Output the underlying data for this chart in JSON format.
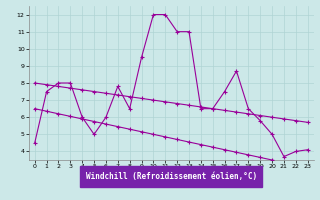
{
  "xlabel": "Windchill (Refroidissement éolien,°C)",
  "xlim": [
    -0.5,
    23.5
  ],
  "ylim": [
    3.5,
    12.5
  ],
  "yticks": [
    4,
    5,
    6,
    7,
    8,
    9,
    10,
    11,
    12
  ],
  "xticks": [
    0,
    1,
    2,
    3,
    4,
    5,
    6,
    7,
    8,
    9,
    10,
    11,
    12,
    13,
    14,
    15,
    16,
    17,
    18,
    19,
    20,
    21,
    22,
    23
  ],
  "bg_color": "#cce8e8",
  "grid_color": "#b0d4d4",
  "line_color": "#990099",
  "label_bg": "#7722aa",
  "line1_y": [
    4.5,
    7.5,
    8.0,
    8.0,
    6.0,
    5.0,
    6.0,
    7.8,
    6.5,
    9.5,
    12.0,
    12.0,
    11.0,
    11.0,
    6.5,
    6.5,
    7.5,
    8.7,
    6.5,
    5.8,
    5.0,
    3.7,
    4.0,
    4.1
  ],
  "line2_y": [
    8.0,
    7.9,
    7.8,
    7.7,
    7.6,
    7.5,
    7.4,
    7.3,
    7.2,
    7.1,
    7.0,
    6.9,
    6.8,
    6.7,
    6.6,
    6.5,
    6.4,
    6.3,
    6.2,
    6.1,
    6.0,
    5.9,
    5.8,
    5.7
  ],
  "line3_y": [
    6.5,
    6.35,
    6.2,
    6.05,
    5.9,
    5.75,
    5.6,
    5.45,
    5.3,
    5.15,
    5.0,
    4.85,
    4.7,
    4.55,
    4.4,
    4.25,
    4.1,
    3.95,
    3.8,
    3.65,
    3.5,
    3.35,
    3.2,
    3.05
  ]
}
